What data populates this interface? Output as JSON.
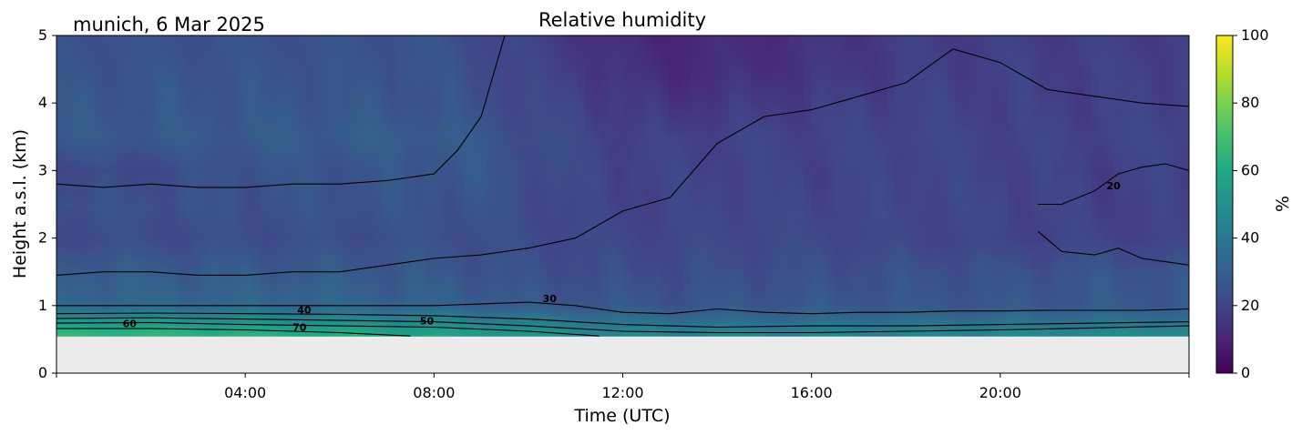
{
  "chart_data": {
    "type": "heatmap",
    "title": "Relative humidity",
    "subtitle": "munich, 6 Mar 2025",
    "xlabel": "Time (UTC)",
    "ylabel": "Height a.s.l. (km)",
    "xlim": [
      "00:00",
      "24:00"
    ],
    "ylim": [
      0,
      5
    ],
    "x_ticks": [
      "04:00",
      "08:00",
      "12:00",
      "16:00",
      "20:00"
    ],
    "y_ticks": [
      "0",
      "1",
      "2",
      "3",
      "4",
      "5"
    ],
    "colorbar": {
      "label": "%",
      "range": [
        0,
        100
      ],
      "ticks": [
        "0",
        "20",
        "40",
        "60",
        "80",
        "100"
      ],
      "colormap": "viridis"
    },
    "no_data_below_km": 0.55,
    "no_data_color": "#ebebeb",
    "time_hours": [
      0,
      2,
      4,
      6,
      8,
      9,
      10,
      11,
      12,
      13,
      14,
      16,
      18,
      20,
      22,
      24
    ],
    "height_km": [
      0.6,
      0.8,
      1.0,
      1.5,
      2.0,
      2.5,
      3.0,
      3.5,
      4.0,
      4.5,
      5.0
    ],
    "humidity_percent": [
      [
        65,
        64,
        62,
        60,
        56,
        54,
        50,
        48,
        45,
        45,
        45,
        45,
        45,
        46,
        47,
        47
      ],
      [
        50,
        50,
        48,
        46,
        44,
        42,
        40,
        38,
        36,
        35,
        34,
        34,
        34,
        35,
        36,
        36
      ],
      [
        33,
        33,
        33,
        32,
        31,
        30,
        28,
        27,
        27,
        26,
        27,
        27,
        27,
        27,
        28,
        28
      ],
      [
        29,
        29,
        28,
        28,
        27,
        26,
        24,
        24,
        23,
        23,
        24,
        24,
        25,
        25,
        26,
        26
      ],
      [
        23,
        23,
        24,
        24,
        25,
        24,
        23,
        22,
        21,
        21,
        22,
        22,
        21,
        20,
        20,
        19
      ],
      [
        25,
        25,
        25,
        26,
        26,
        26,
        23,
        21,
        20,
        20,
        21,
        21,
        21,
        21,
        19,
        19
      ],
      [
        21,
        22,
        26,
        26,
        27,
        27,
        24,
        22,
        20,
        20,
        20,
        20,
        21,
        20,
        19,
        20
      ],
      [
        28,
        28,
        28,
        29,
        29,
        27,
        24,
        22,
        19,
        19,
        20,
        20,
        21,
        20,
        20,
        21
      ],
      [
        27,
        27,
        27,
        27,
        26,
        24,
        22,
        20,
        17,
        15,
        16,
        18,
        20,
        19,
        19,
        20
      ],
      [
        26,
        26,
        26,
        26,
        26,
        24,
        20,
        18,
        14,
        12,
        13,
        15,
        18,
        19,
        19,
        19
      ],
      [
        25,
        25,
        25,
        25,
        25,
        22,
        19,
        16,
        12,
        11,
        12,
        14,
        18,
        18,
        18,
        18
      ]
    ],
    "contour_lines": [
      {
        "label": "20",
        "x": [
          0,
          1,
          2,
          3,
          4,
          5,
          6,
          7,
          8,
          9,
          10,
          11,
          12,
          13,
          14,
          15,
          16,
          17,
          18,
          19,
          20,
          21,
          22,
          23,
          24
        ],
        "y": [
          1.45,
          1.5,
          1.5,
          1.45,
          1.45,
          1.5,
          1.5,
          1.6,
          1.7,
          1.75,
          1.85,
          2.0,
          2.4,
          2.6,
          3.4,
          3.8,
          3.9,
          4.1,
          4.3,
          4.8,
          4.6,
          4.2,
          4.1,
          4.0,
          3.95
        ]
      },
      {
        "label": "20",
        "x": [
          0,
          1,
          2,
          3,
          4,
          5,
          6,
          7,
          8,
          8.5,
          9,
          9.5
        ],
        "y": [
          2.8,
          2.75,
          2.8,
          2.75,
          2.75,
          2.8,
          2.8,
          2.85,
          2.95,
          3.3,
          3.8,
          5.0
        ]
      },
      {
        "label": "20",
        "x": [
          20.8,
          21.3,
          22,
          22.5,
          23,
          23.5,
          24
        ],
        "y": [
          2.1,
          1.8,
          1.75,
          1.85,
          1.7,
          1.65,
          1.6
        ]
      },
      {
        "label": "20",
        "x": [
          20.8,
          21.3,
          22,
          22.5,
          23,
          23.5,
          24
        ],
        "y": [
          2.5,
          2.5,
          2.7,
          2.95,
          3.05,
          3.1,
          3.0
        ]
      },
      {
        "label": "30",
        "x": [
          0,
          2,
          4,
          6,
          8,
          10,
          11,
          12,
          13,
          14,
          15,
          16,
          17,
          18,
          19,
          20,
          21,
          22,
          23,
          24
        ],
        "y": [
          1.0,
          1.0,
          1.0,
          1.0,
          1.0,
          1.05,
          1.0,
          0.9,
          0.88,
          0.95,
          0.9,
          0.88,
          0.9,
          0.9,
          0.92,
          0.92,
          0.93,
          0.93,
          0.93,
          0.95
        ]
      },
      {
        "label": "40",
        "x": [
          0,
          2,
          4,
          6,
          8,
          10,
          12,
          14,
          16,
          18,
          20,
          22,
          24
        ],
        "y": [
          0.88,
          0.89,
          0.88,
          0.87,
          0.85,
          0.8,
          0.72,
          0.68,
          0.7,
          0.7,
          0.72,
          0.74,
          0.76
        ]
      },
      {
        "label": "50",
        "x": [
          0,
          2,
          4,
          6,
          8,
          10,
          12,
          14,
          16,
          18,
          20,
          22,
          24
        ],
        "y": [
          0.81,
          0.82,
          0.8,
          0.78,
          0.76,
          0.7,
          0.62,
          0.6,
          0.6,
          0.62,
          0.64,
          0.67,
          0.7
        ]
      },
      {
        "label": "60",
        "x": [
          0,
          2,
          4,
          6,
          8,
          10,
          11.5
        ],
        "y": [
          0.74,
          0.75,
          0.72,
          0.7,
          0.68,
          0.62,
          0.55
        ]
      },
      {
        "label": "70",
        "x": [
          0,
          2,
          4,
          6,
          7.5
        ],
        "y": [
          0.66,
          0.66,
          0.64,
          0.6,
          0.55
        ]
      }
    ],
    "contour_text": [
      {
        "text": "60",
        "x": 1.55,
        "y": 0.68
      },
      {
        "text": "40",
        "x": 5.25,
        "y": 0.88
      },
      {
        "text": "70",
        "x": 5.15,
        "y": 0.63
      },
      {
        "text": "50",
        "x": 7.85,
        "y": 0.72
      },
      {
        "text": "30",
        "x": 10.45,
        "y": 1.05
      },
      {
        "text": "20",
        "x": 22.4,
        "y": 2.72
      }
    ]
  }
}
